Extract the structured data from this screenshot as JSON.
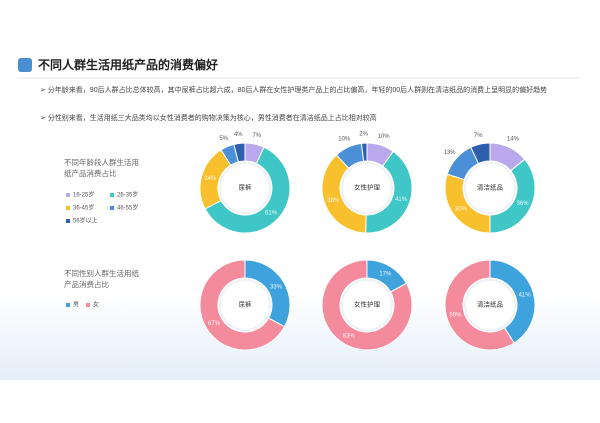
{
  "header": {
    "title": "不同人群生活用纸产品的消费偏好"
  },
  "bullets": [
    "分年龄来看，90后人群占比总体较高，其中尿裤占比超六成，80后人群在女性护理类产品上的占比偏高，年轻的00后人群则在清洁纸品的消费上呈明显的偏好趋势",
    "分性别来看，生活用纸三大品类均以女性消费者的购物决策为核心，男性消费者在清洁纸品上占比相对较高"
  ],
  "sections": [
    {
      "label": "不同年龄段人群生活用纸产品消费占比"
    },
    {
      "label": "不同性别人群生活用纸产品消费占比"
    }
  ],
  "chart_data": [
    {
      "type": "donut",
      "title": "尿裤",
      "categories": [
        "16-25岁",
        "26-35岁",
        "36-45岁",
        "46-55岁",
        "56岁以上"
      ],
      "colors": [
        "#b9a8ec",
        "#3fc6c6",
        "#f8c02c",
        "#4b90d6",
        "#2e5fae"
      ],
      "values": [
        7,
        61,
        24,
        5,
        4
      ],
      "value_labels": [
        "7%",
        "61%",
        "24%",
        "5%",
        "4%"
      ]
    },
    {
      "type": "donut",
      "title": "女性护理",
      "categories": [
        "16-25岁",
        "26-35岁",
        "36-45岁",
        "46-55岁",
        "56岁以上"
      ],
      "colors": [
        "#b9a8ec",
        "#3fc6c6",
        "#f8c02c",
        "#4b90d6",
        "#2e5fae"
      ],
      "values": [
        10,
        41,
        38,
        10,
        2
      ],
      "value_labels": [
        "10%",
        "41%",
        "38%",
        "10%",
        "2%"
      ]
    },
    {
      "type": "donut",
      "title": "清洁纸品",
      "categories": [
        "16-25岁",
        "26-35岁",
        "36-45岁",
        "46-55岁",
        "56岁以上"
      ],
      "colors": [
        "#b9a8ec",
        "#3fc6c6",
        "#f8c02c",
        "#4b90d6",
        "#2e5fae"
      ],
      "values": [
        14,
        36,
        30,
        13,
        7
      ],
      "value_labels": [
        "14%",
        "36%",
        "30%",
        "13%",
        "7%"
      ]
    },
    {
      "type": "donut",
      "title": "尿裤",
      "categories": [
        "男",
        "女"
      ],
      "colors": [
        "#3ea3dd",
        "#f38b9c"
      ],
      "values": [
        33,
        67
      ],
      "value_labels": [
        "33%",
        "67%"
      ]
    },
    {
      "type": "donut",
      "title": "女性护理",
      "categories": [
        "男",
        "女"
      ],
      "colors": [
        "#3ea3dd",
        "#f38b9c"
      ],
      "values": [
        17,
        83
      ],
      "value_labels": [
        "17%",
        "83%"
      ]
    },
    {
      "type": "donut",
      "title": "清洁纸品",
      "categories": [
        "男",
        "女"
      ],
      "colors": [
        "#3ea3dd",
        "#f38b9c"
      ],
      "values": [
        41,
        59
      ],
      "value_labels": [
        "41%",
        "59%"
      ]
    }
  ]
}
